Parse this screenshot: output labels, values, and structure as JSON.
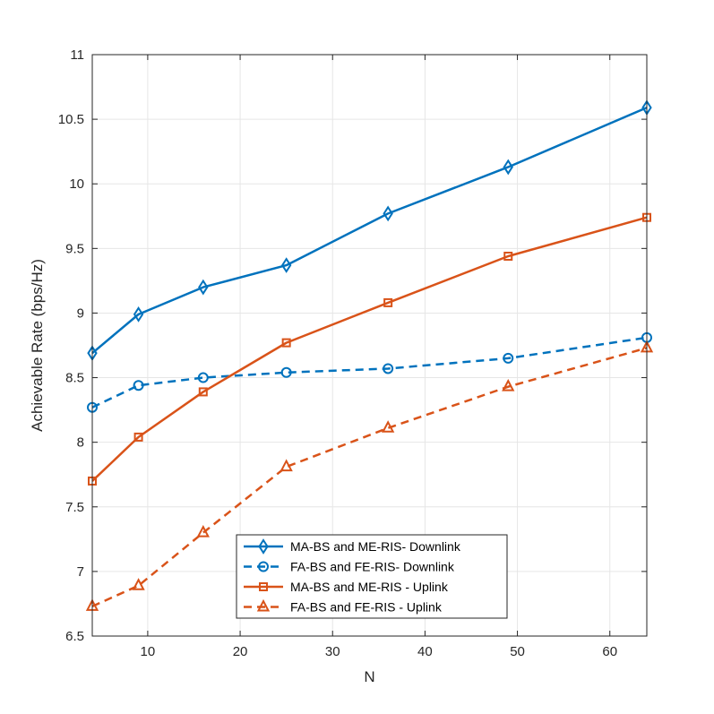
{
  "chart_data": {
    "type": "line",
    "title": "",
    "xlabel": "N",
    "ylabel": "Achievable Rate (bps/Hz)",
    "xlim": [
      4,
      64
    ],
    "ylim": [
      6.5,
      11
    ],
    "xticks": [
      10,
      20,
      30,
      40,
      50,
      60
    ],
    "yticks": [
      6.5,
      7,
      7.5,
      8,
      8.5,
      9,
      9.5,
      10,
      10.5,
      11
    ],
    "grid": true,
    "legend_position": "bottom-center",
    "x": [
      4,
      9,
      16,
      25,
      36,
      49,
      64
    ],
    "series": [
      {
        "name": "MA-BS and ME-RIS- Downlink",
        "color": "#0072BD",
        "line": "solid",
        "marker": "diamond",
        "values": [
          8.69,
          8.99,
          9.2,
          9.37,
          9.77,
          10.13,
          10.59
        ]
      },
      {
        "name": "FA-BS and FE-RIS- Downlink",
        "color": "#0072BD",
        "line": "dashed",
        "marker": "circle",
        "values": [
          8.27,
          8.44,
          8.5,
          8.54,
          8.57,
          8.65,
          8.81
        ]
      },
      {
        "name": "MA-BS and ME-RIS - Uplink",
        "color": "#D95319",
        "line": "solid",
        "marker": "square",
        "values": [
          7.7,
          8.04,
          8.39,
          8.77,
          9.08,
          9.44,
          9.74
        ]
      },
      {
        "name": "FA-BS and FE-RIS - Uplink",
        "color": "#D95319",
        "line": "dashed",
        "marker": "triangle",
        "values": [
          6.73,
          6.89,
          7.3,
          7.81,
          8.11,
          8.43,
          8.73
        ]
      }
    ]
  }
}
